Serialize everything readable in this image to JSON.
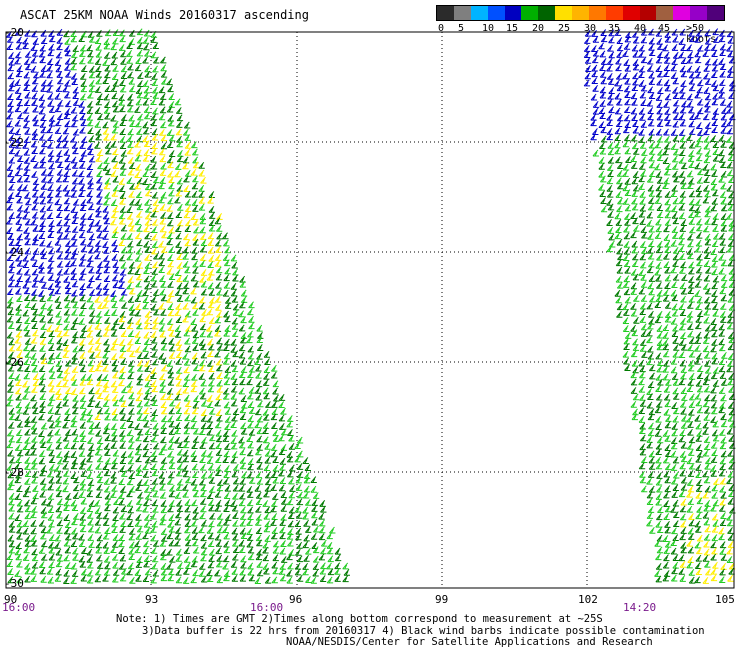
{
  "title": "ASCAT 25KM NOAA Winds 20160317 ascending",
  "legend": {
    "labels": [
      "0",
      "5",
      "10",
      "15",
      "20",
      "25",
      "30",
      "35",
      "40",
      "45",
      ">50 knots"
    ],
    "colors": [
      "#2b2b2b",
      "#7f7f7f",
      "#00b4ff",
      "#0050ff",
      "#0000c0",
      "#00b000",
      "#006400",
      "#ffe000",
      "#ffb400",
      "#ff7800",
      "#ff3c00",
      "#e00000",
      "#b40000",
      "#a06040",
      "#e000e0",
      "#9600c8",
      "#50007a"
    ]
  },
  "axes": {
    "lat_labels": [
      "-20",
      "-22",
      "-24",
      "-26",
      "-28",
      "-30"
    ],
    "lon_labels": [
      "90",
      "93",
      "96",
      "99",
      "102",
      "105"
    ],
    "time_labels": [
      "16:00",
      "16:00",
      "14:20"
    ]
  },
  "notes": [
    "Note: 1) Times are GMT 2)Times along bottom correspond to measurement at ~25S",
    "3)Data buffer is 22 hrs from 20160317 4) Black wind barbs indicate possible contamination",
    "NOAA/NESDIS/Center for Satellite Applications and Research"
  ],
  "swath_colors": {
    "light_green": "#22cc22",
    "dark_green": "#007a00",
    "blue": "#0000cc",
    "yellow": "#ffee00"
  }
}
